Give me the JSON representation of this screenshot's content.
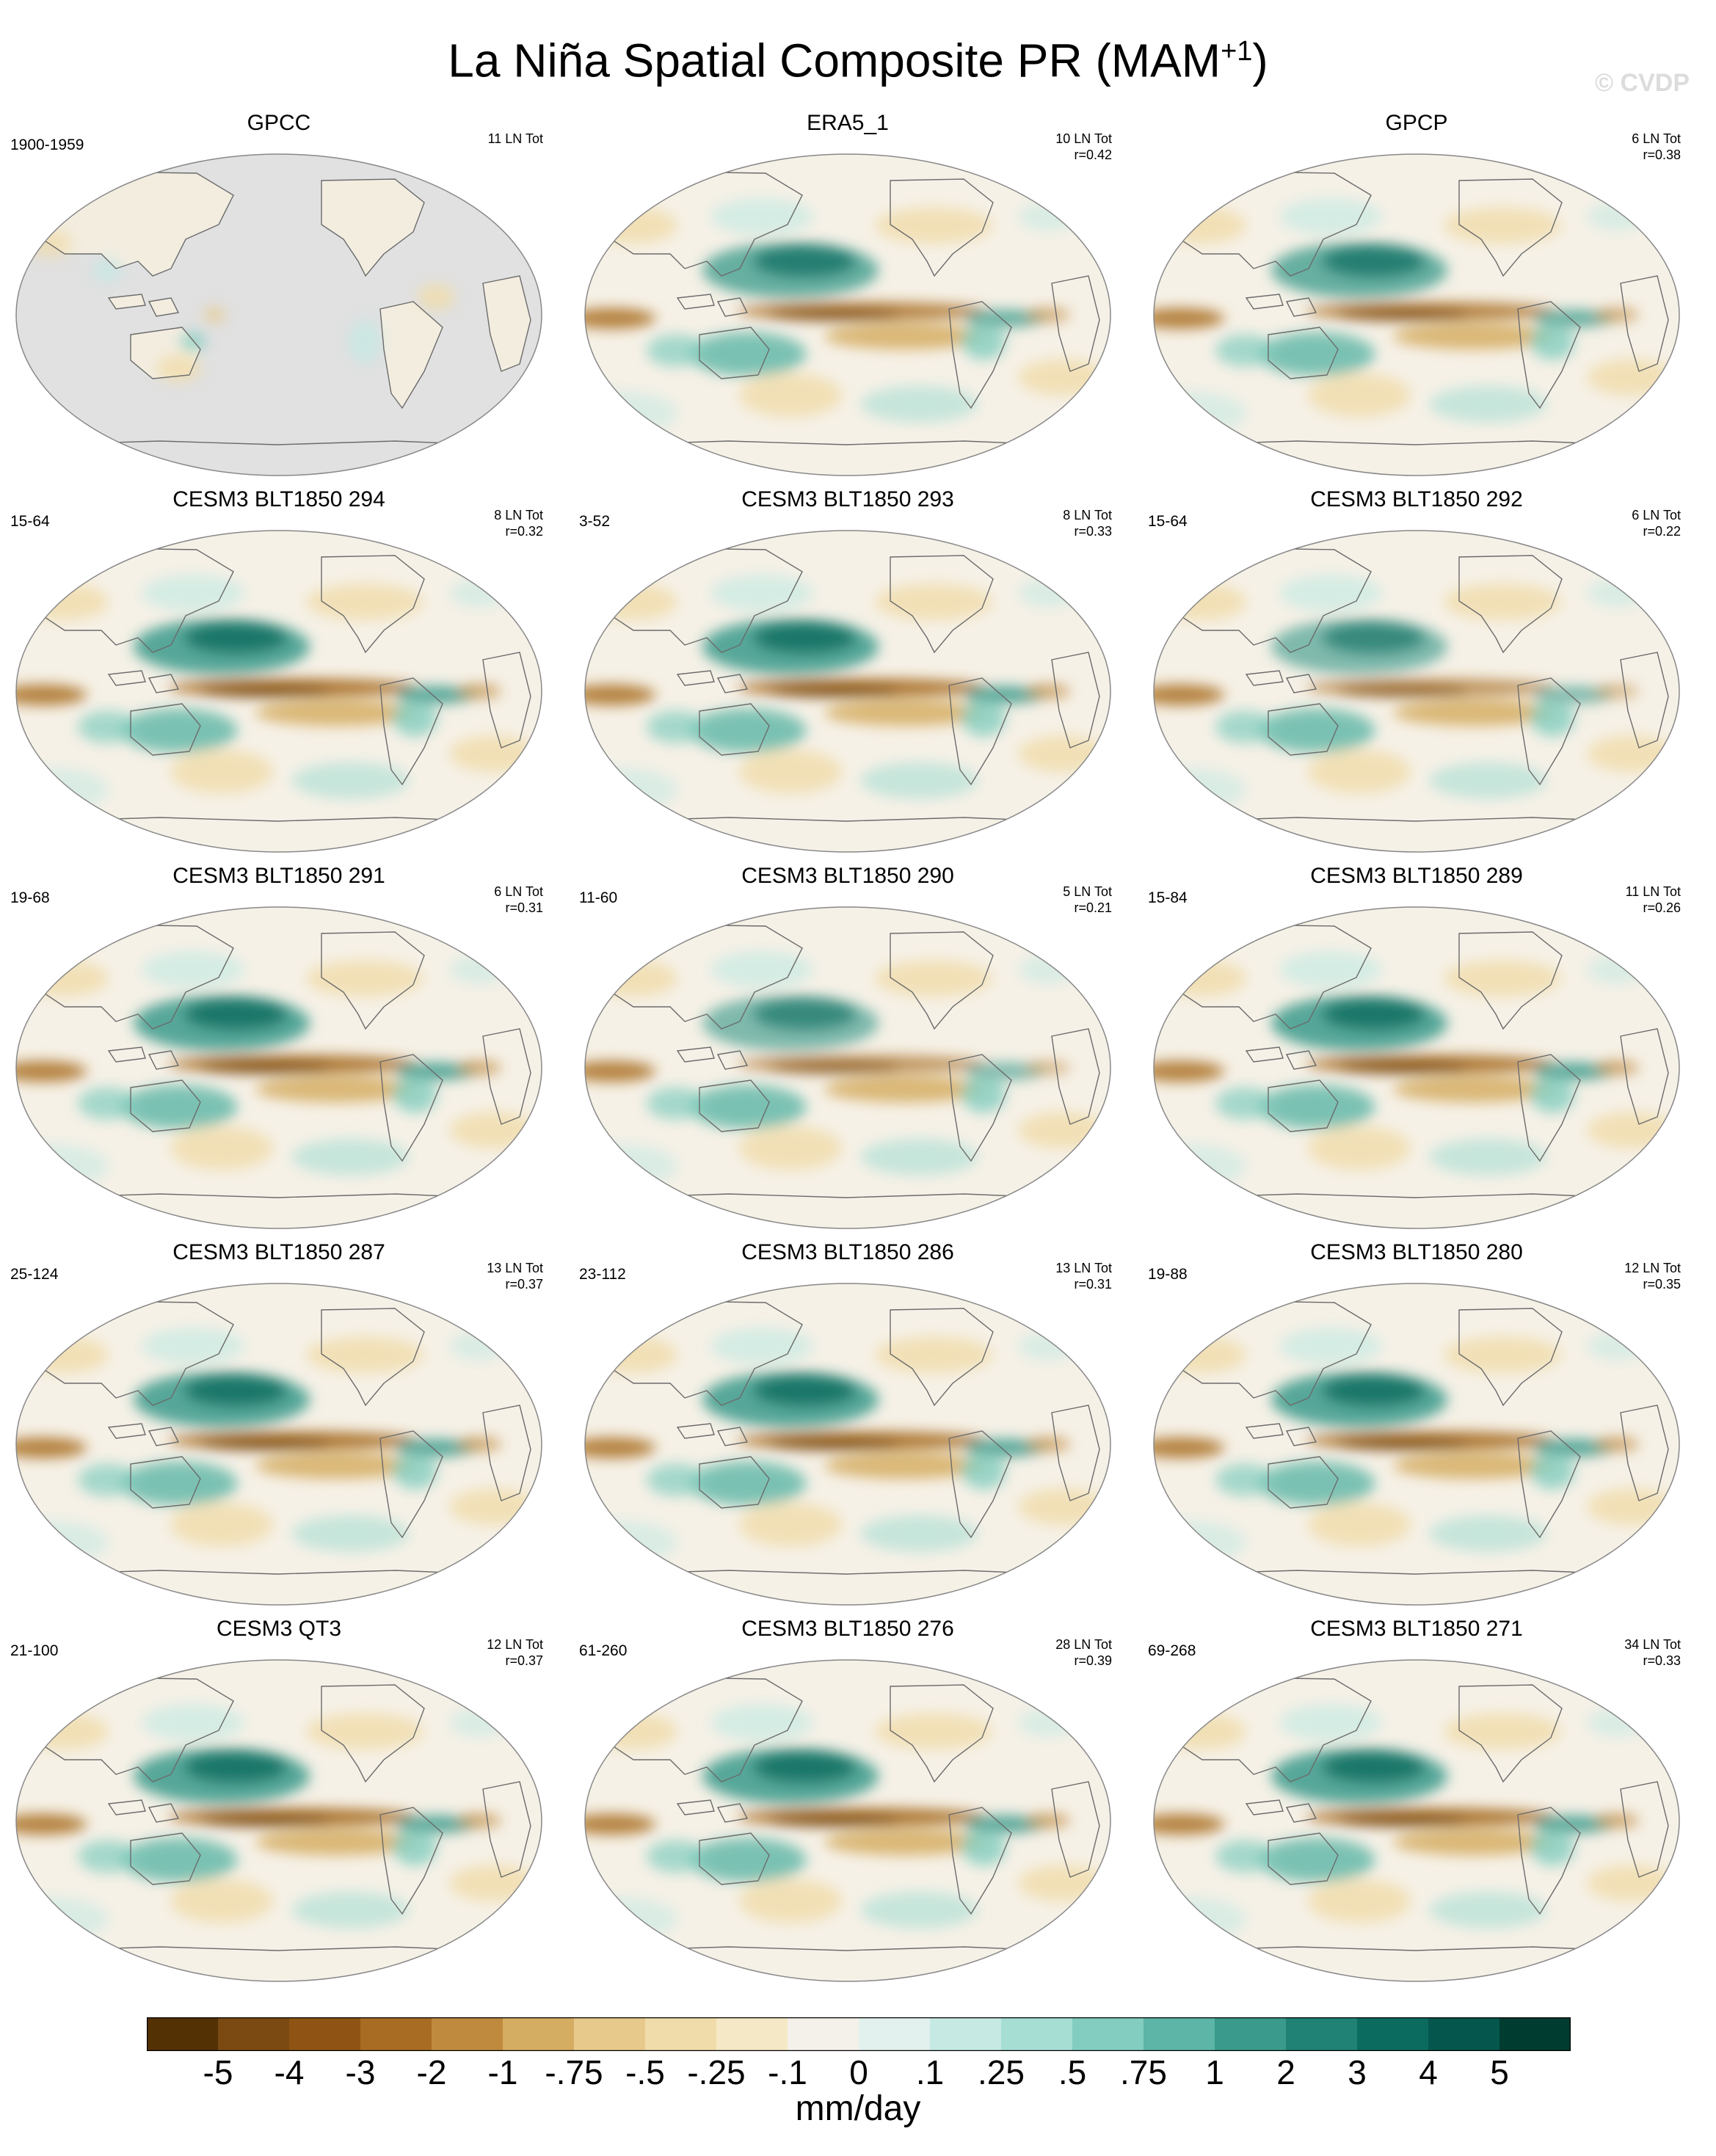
{
  "title": "La Niña Spatial Composite PR (MAM",
  "title_sup": "+1",
  "title_end": ")",
  "watermark": "© CVDP",
  "panels": [
    {
      "name": "GPCC",
      "years": "1900-1959",
      "count": "11 LN Tot",
      "r": "",
      "pattern": 0
    },
    {
      "name": "ERA5_1",
      "years": "",
      "count": "10 LN Tot",
      "r": "r=0.42",
      "pattern": 1
    },
    {
      "name": "GPCP",
      "years": "",
      "count": "6 LN Tot",
      "r": "r=0.38",
      "pattern": 1
    },
    {
      "name": "CESM3 BLT1850 294",
      "years": "15-64",
      "count": "8 LN Tot",
      "r": "r=0.32",
      "pattern": 2
    },
    {
      "name": "CESM3 BLT1850 293",
      "years": "3-52",
      "count": "8 LN Tot",
      "r": "r=0.33",
      "pattern": 2
    },
    {
      "name": "CESM3 BLT1850 292",
      "years": "15-64",
      "count": "6 LN Tot",
      "r": "r=0.22",
      "pattern": 3
    },
    {
      "name": "CESM3 BLT1850 291",
      "years": "19-68",
      "count": "6 LN Tot",
      "r": "r=0.31",
      "pattern": 2
    },
    {
      "name": "CESM3 BLT1850 290",
      "years": "11-60",
      "count": "5 LN Tot",
      "r": "r=0.21",
      "pattern": 3
    },
    {
      "name": "CESM3 BLT1850 289",
      "years": "15-84",
      "count": "11 LN Tot",
      "r": "r=0.26",
      "pattern": 2
    },
    {
      "name": "CESM3 BLT1850 287",
      "years": "25-124",
      "count": "13 LN Tot",
      "r": "r=0.37",
      "pattern": 2
    },
    {
      "name": "CESM3 BLT1850 286",
      "years": "23-112",
      "count": "13 LN Tot",
      "r": "r=0.31",
      "pattern": 2
    },
    {
      "name": "CESM3 BLT1850 280",
      "years": "19-88",
      "count": "12 LN Tot",
      "r": "r=0.35",
      "pattern": 2
    },
    {
      "name": "CESM3 QT3",
      "years": "21-100",
      "count": "12 LN Tot",
      "r": "r=0.37",
      "pattern": 2
    },
    {
      "name": "CESM3 BLT1850 276",
      "years": "61-260",
      "count": "28 LN Tot",
      "r": "r=0.39",
      "pattern": 2
    },
    {
      "name": "CESM3 BLT1850 271",
      "years": "69-268",
      "count": "34 LN Tot",
      "r": "r=0.33",
      "pattern": 2
    }
  ],
  "colorbar": {
    "colors": [
      "#543005",
      "#7a4a12",
      "#8f5413",
      "#a86d22",
      "#c08a3e",
      "#d5ad62",
      "#e6c98b",
      "#f0dcaa",
      "#f5e8c6",
      "#f4f1ea",
      "#e2f1ee",
      "#c6e9e3",
      "#a6ded4",
      "#82cdbf",
      "#5cb5a6",
      "#3a9a8b",
      "#1f8275",
      "#0b6b5f",
      "#05574d",
      "#003c30"
    ],
    "labels": [
      "-5",
      "-4",
      "-3",
      "-2",
      "-1",
      "-.75",
      "-.5",
      "-.25",
      "-.1",
      "0",
      ".1",
      ".25",
      ".5",
      ".75",
      "1",
      "2",
      "3",
      "4",
      "5"
    ],
    "units": "mm/day"
  }
}
